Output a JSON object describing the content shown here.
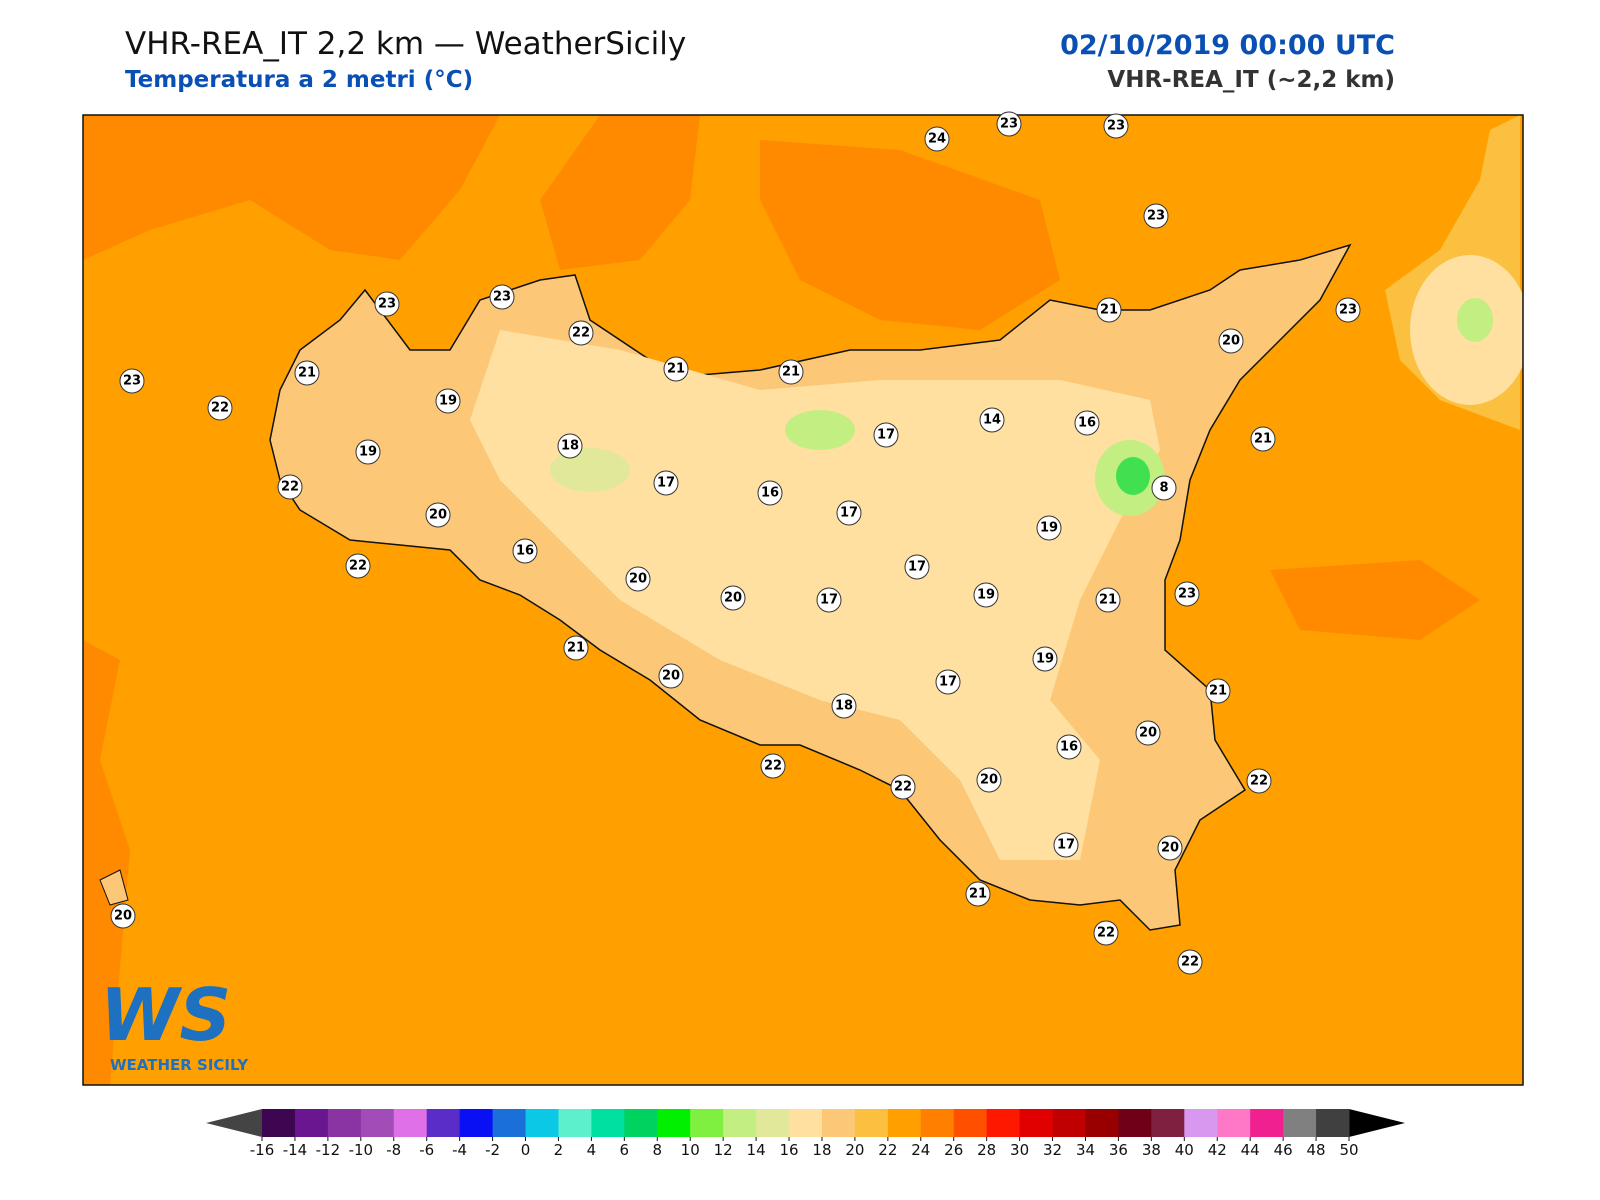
{
  "header": {
    "title": "VHR-REA_IT 2,2 km — WeatherSicily",
    "subtitle": "Temperatura a 2 metri (°C)",
    "datetime": "02/10/2019 00:00 UTC",
    "model": "VHR-REA_IT (~2,2 km)"
  },
  "logo": {
    "mark": "WS",
    "name": "WEATHER SICILY"
  },
  "stations": [
    {
      "value": 24
    },
    {
      "value": 23
    },
    {
      "value": 23
    },
    {
      "value": 23
    },
    {
      "value": 23
    },
    {
      "value": 23
    },
    {
      "value": 22
    },
    {
      "value": 21
    },
    {
      "value": 23
    },
    {
      "value": 22
    },
    {
      "value": 19
    },
    {
      "value": 19
    },
    {
      "value": 18
    },
    {
      "value": 21
    },
    {
      "value": 21
    },
    {
      "value": 17
    },
    {
      "value": 14
    },
    {
      "value": 16
    },
    {
      "value": 21
    },
    {
      "value": 20
    },
    {
      "value": 23
    },
    {
      "value": 21
    },
    {
      "value": 8
    },
    {
      "value": 22
    },
    {
      "value": 20
    },
    {
      "value": 16
    },
    {
      "value": 17
    },
    {
      "value": 16
    },
    {
      "value": 17
    },
    {
      "value": 19
    },
    {
      "value": 22
    },
    {
      "value": 20
    },
    {
      "value": 20
    },
    {
      "value": 17
    },
    {
      "value": 17
    },
    {
      "value": 19
    },
    {
      "value": 21
    },
    {
      "value": 23
    },
    {
      "value": 21
    },
    {
      "value": 20
    },
    {
      "value": 18
    },
    {
      "value": 17
    },
    {
      "value": 19
    },
    {
      "value": 21
    },
    {
      "value": 16
    },
    {
      "value": 20
    },
    {
      "value": 22
    },
    {
      "value": 22
    },
    {
      "value": 20
    },
    {
      "value": 22
    },
    {
      "value": 17
    },
    {
      "value": 20
    },
    {
      "value": 21
    },
    {
      "value": 22
    },
    {
      "value": 22
    },
    {
      "value": 20
    }
  ],
  "colorbar": {
    "ticks": [
      -16,
      -14,
      -12,
      -10,
      -8,
      -6,
      -4,
      -2,
      0,
      2,
      4,
      6,
      8,
      10,
      12,
      14,
      16,
      18,
      20,
      22,
      24,
      26,
      28,
      30,
      32,
      34,
      36,
      38,
      40,
      42,
      44,
      46,
      48,
      50
    ],
    "colors": [
      "#3e0650",
      "#6a1690",
      "#8a34a4",
      "#a24cb8",
      "#e070e8",
      "#5a2cc8",
      "#0a10f4",
      "#1a70d8",
      "#0ac8e6",
      "#5cf0cc",
      "#00e0a0",
      "#00d260",
      "#00f000",
      "#80f040",
      "#c2ee82",
      "#e2e89a",
      "#ffe0a0",
      "#fcc878",
      "#fcc040",
      "#ffa000",
      "#ff8000",
      "#ff5000",
      "#ff1800",
      "#e00000",
      "#c00000",
      "#980000",
      "#700018",
      "#802040",
      "#d898f0",
      "#ff78c8",
      "#f02090",
      "#808080",
      "#404040"
    ],
    "under_color": "#444444",
    "over_color": "#000000"
  }
}
